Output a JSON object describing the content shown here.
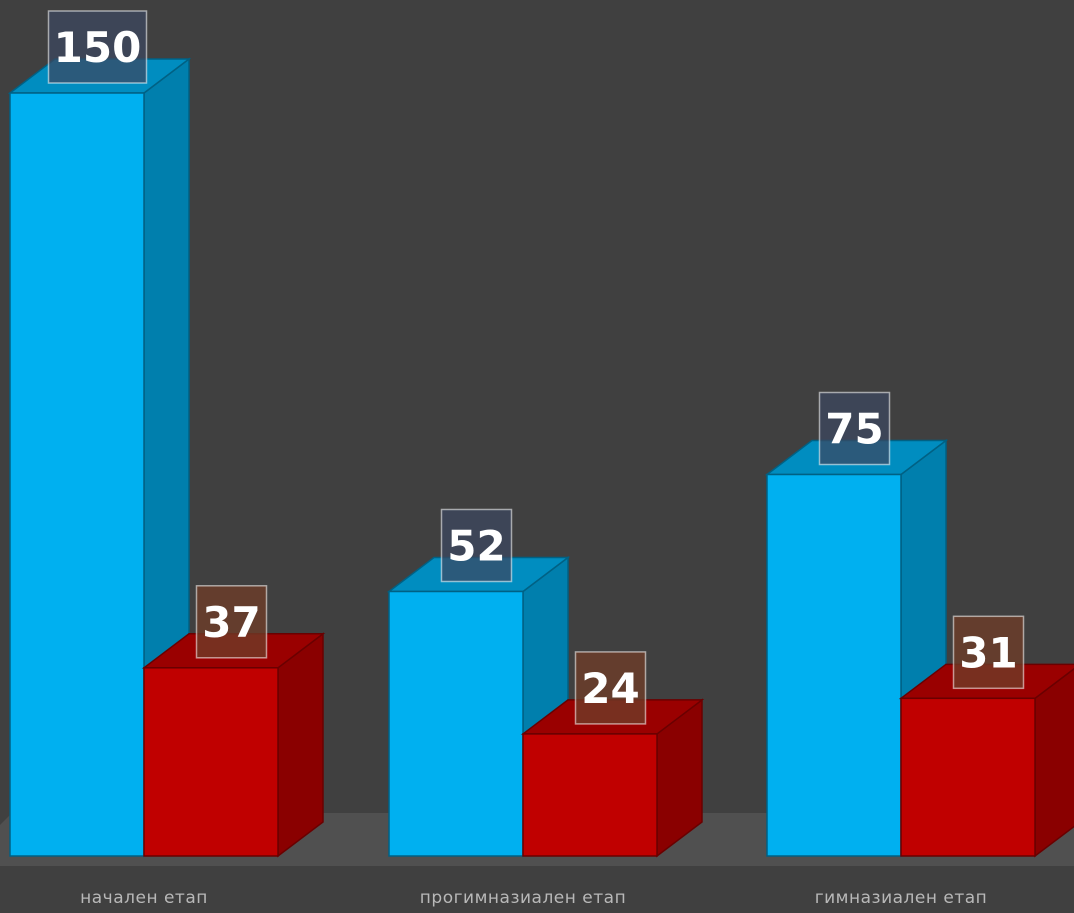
{
  "chart_data": {
    "type": "bar",
    "style": "3d-clustered-column",
    "categories": [
      "начален етап",
      "прогимназиален етап",
      "гимназиален етап"
    ],
    "series": [
      {
        "values": [
          150,
          52,
          75
        ],
        "color": "#00b0f0"
      },
      {
        "values": [
          37,
          24,
          31
        ],
        "color": "#c00000"
      }
    ],
    "data_labels": true,
    "grid": false,
    "legend": "none",
    "ylim": [
      0,
      150
    ]
  },
  "colors": {
    "background": "#404040",
    "floor": "#505050",
    "blue": "#00b0f0",
    "red": "#c00000",
    "category_text": "#b8b8b8"
  }
}
